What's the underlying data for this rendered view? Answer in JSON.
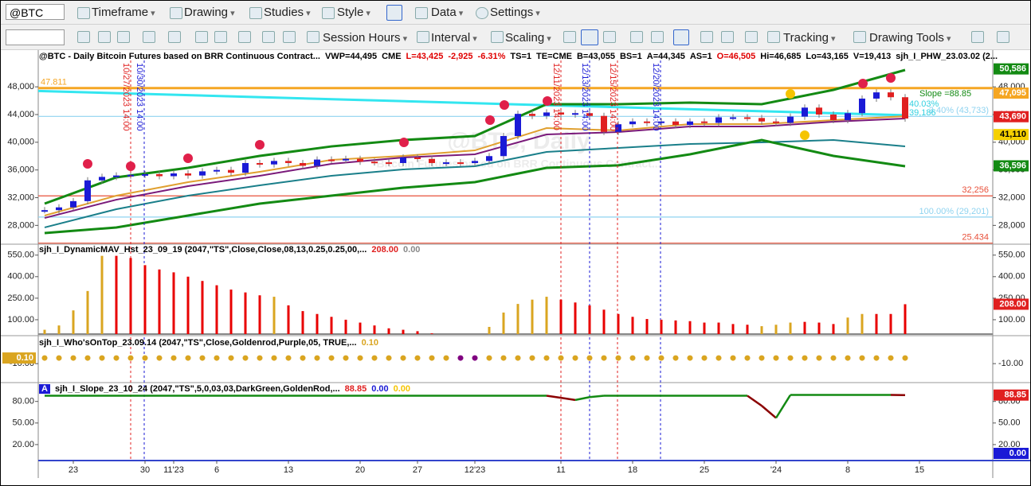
{
  "toolbar": {
    "symbol": "@BTC",
    "menus": [
      "Timeframe",
      "Drawing",
      "Studies",
      "Style",
      "Data",
      "Settings"
    ],
    "row2": [
      "Session Hours",
      "Interval",
      "Scaling",
      "Tracking",
      "Drawing Tools"
    ]
  },
  "price_panel": {
    "header": "@BTC - Daily  Bitcoin Futures based on BRR Continuous Contract...",
    "stats": [
      {
        "text": "VWP=44,495",
        "color": "#000000"
      },
      {
        "text": "CME",
        "color": "#000000"
      },
      {
        "text": "L=43,425",
        "color": "#e00000"
      },
      {
        "text": "-2,925",
        "color": "#e00000"
      },
      {
        "text": "-6.31%",
        "color": "#e00000"
      },
      {
        "text": "TS=1",
        "color": "#000000"
      },
      {
        "text": "TE=CME",
        "color": "#000000"
      },
      {
        "text": "B=43,055",
        "color": "#000000"
      },
      {
        "text": "BS=1",
        "color": "#000000"
      },
      {
        "text": "A=44,345",
        "color": "#000000"
      },
      {
        "text": "AS=1",
        "color": "#000000"
      },
      {
        "text": "O=46,505",
        "color": "#e00000"
      },
      {
        "text": "Hi=46,685",
        "color": "#000000"
      },
      {
        "text": "Lo=43,165",
        "color": "#000000"
      },
      {
        "text": "V=19,413",
        "color": "#000000"
      },
      {
        "text": "sjh_I_PHW_23.03.02 (2...",
        "color": "#000000"
      }
    ],
    "watermark": "@BTC, Daily",
    "watermark_sub": "Bitcoin Futures based on BRR Continuous Contract...",
    "ylim": [
      25400,
      53300
    ],
    "yticks": [
      {
        "value": 48000,
        "label": "48,000"
      },
      {
        "value": 44000,
        "label": "44,000"
      },
      {
        "value": 40000,
        "label": "40,000"
      },
      {
        "value": 36000,
        "label": "36,000"
      },
      {
        "value": 32000,
        "label": "32,000"
      },
      {
        "value": 28000,
        "label": "28,000"
      }
    ],
    "close": [
      30200,
      30600,
      31500,
      34500,
      35000,
      35200,
      35300,
      35400,
      35100,
      35500,
      35200,
      35800,
      36000,
      35600,
      37000,
      36800,
      37300,
      37000,
      36600,
      37500,
      37400,
      37600,
      37200,
      37100,
      37000,
      37800,
      37600,
      37000,
      37100,
      37000,
      37300,
      38000,
      40900,
      44100,
      43800,
      44300,
      44000,
      44200,
      43800,
      41500,
      42600,
      43000,
      42800,
      43000,
      42500,
      43000,
      42800,
      43600,
      43600,
      43500,
      43000,
      42800,
      43700,
      45000,
      44000,
      43200,
      44200,
      46300,
      47200,
      46500,
      43425
    ],
    "band_x": [
      0,
      5,
      10,
      15,
      20,
      25,
      30,
      35,
      40,
      45,
      50,
      55,
      60
    ],
    "bands": [
      {
        "color": "#138a13",
        "values": [
          31140,
          34930,
          36310,
          38030,
          39400,
          40320,
          40900,
          45490,
          45490,
          45720,
          45490,
          47560,
          50430
        ]
      },
      {
        "color": "#e0a030",
        "values": [
          29420,
          32290,
          34240,
          35730,
          37450,
          38030,
          38830,
          42050,
          41700,
          42620,
          42620,
          43190,
          43770
        ]
      },
      {
        "color": "#7a1a7a",
        "values": [
          29070,
          31710,
          33670,
          35160,
          36880,
          37800,
          38260,
          41130,
          41470,
          42280,
          42280,
          42960,
          43420
        ]
      },
      {
        "color": "#1a7f8a",
        "values": [
          27700,
          30340,
          32290,
          33780,
          35160,
          36080,
          36540,
          38600,
          39180,
          39750,
          39980,
          40320,
          39410
        ]
      },
      {
        "color": "#138a13",
        "values": [
          26890,
          27700,
          29420,
          31140,
          32290,
          33440,
          34240,
          36310,
          36670,
          38260,
          40320,
          38030,
          36540
        ]
      }
    ],
    "trendline": {
      "color": "#33e6f0",
      "values": [
        47400,
        43900
      ]
    },
    "levels": [
      {
        "value": 47811,
        "label": "47.811",
        "color": "#f5a623"
      },
      {
        "value": 43733,
        "label": "3.40% (43,733)",
        "color": "#8fd3f0"
      },
      {
        "value": 32256,
        "label": "32,256",
        "color": "#e8503a"
      },
      {
        "value": 29201,
        "label": "100.00% (29,201)",
        "color": "#8fd3f0"
      },
      {
        "value": 25434,
        "label": "25.434",
        "color": "#e8503a"
      }
    ],
    "annotations": [
      {
        "text": "Slope =88.85",
        "color": "#138a13"
      },
      {
        "text": "40.03%",
        "color": "#33d0e0"
      },
      {
        "text": "39,186",
        "color": "#33d0e0"
      }
    ],
    "boxes": [
      {
        "value": 50586,
        "label": "50,586",
        "color": "#138a13",
        "text_color": "#ffffff"
      },
      {
        "value": 47095,
        "label": "47,095",
        "color": "#f5a623",
        "text_color": "#ffffff"
      },
      {
        "value": 43690,
        "label": "43,690",
        "color": "#e02020",
        "text_color": "#ffffff"
      },
      {
        "value": 41110,
        "label": "41,110",
        "color": "#f5d000",
        "text_color": "#000000"
      },
      {
        "value": 36596,
        "label": "36,596",
        "color": "#138a13",
        "text_color": "#ffffff"
      }
    ],
    "date_markers": [
      {
        "text": "10/27/2023 14:00",
        "color": "#e02020"
      },
      {
        "text": "10/30/2023 14:00",
        "color": "#1a1ad6"
      },
      {
        "text": "12/11/2023 14:00",
        "color": "#e02020"
      },
      {
        "text": "12/13/2023 14:00",
        "color": "#1a1ad6"
      },
      {
        "text": "12/15/2023 14:00",
        "color": "#e02020"
      },
      {
        "text": "12/20/2023 14:00",
        "color": "#1a1ad6"
      }
    ]
  },
  "histogram_panel": {
    "title": "sjh_I_DynamicMAV_Hst_23_09_19 (2047,\"TS\",Close,Close,08,13,0.25,0.25,00,...",
    "title_values": [
      {
        "text": "208.00",
        "color": "#e02020"
      },
      {
        "text": "0.00",
        "color": "#888888"
      }
    ],
    "ylim": [
      0,
      615
    ],
    "yticks": [
      {
        "value": 550,
        "label": "550.00"
      },
      {
        "value": 400,
        "label": "400.00"
      },
      {
        "value": 250,
        "label": "250.00"
      },
      {
        "value": 100,
        "label": "100.00"
      }
    ],
    "series": [
      {
        "color": "#daa520",
        "values": [
          30,
          60,
          165,
          300,
          545,
          null,
          null,
          null,
          null,
          null,
          null,
          null,
          null,
          null,
          null,
          null,
          260,
          null,
          null,
          null,
          null,
          null,
          null,
          null,
          null,
          null,
          null,
          null,
          null,
          null,
          null,
          50,
          150,
          210,
          240,
          260,
          null,
          null,
          null,
          null,
          null,
          null,
          null,
          null,
          null,
          null,
          null,
          null,
          null,
          null,
          55,
          65,
          80,
          null,
          null,
          null,
          115,
          140,
          null,
          null,
          null
        ]
      },
      {
        "color": "#e80000",
        "values": [
          null,
          null,
          null,
          null,
          null,
          545,
          530,
          480,
          450,
          430,
          400,
          370,
          340,
          310,
          290,
          270,
          null,
          200,
          160,
          140,
          120,
          100,
          80,
          60,
          40,
          30,
          20,
          5,
          0,
          0,
          0,
          null,
          null,
          null,
          null,
          null,
          240,
          220,
          200,
          170,
          140,
          120,
          105,
          100,
          95,
          90,
          80,
          80,
          70,
          65,
          null,
          null,
          null,
          85,
          80,
          70,
          null,
          null,
          140,
          140,
          208
        ]
      }
    ],
    "box": {
      "value": 208,
      "label": "208.00",
      "color": "#e02020"
    }
  },
  "dots_panel": {
    "title": "sjh_I_Who'sOnTop_23.09.14 (2047,\"TS\",Close,Goldenrod,Purple,05,  TRUE,...",
    "title_value": "0.10",
    "ylim": [
      -44,
      38.7
    ],
    "yticks": [
      {
        "value": -10,
        "label": "-10.00"
      }
    ],
    "series": [
      {
        "color": "#daa520",
        "values": [
          0.1,
          0.1,
          0.1,
          0.1,
          0.1,
          0.1,
          0.1,
          0.1,
          0.1,
          0.1,
          0.1,
          0.1,
          0.1,
          0.1,
          0.1,
          0.1,
          0.1,
          0.1,
          0.1,
          0.1,
          0.1,
          0.1,
          0.1,
          0.1,
          0.1,
          0.1,
          0.1,
          0.1,
          0.1,
          null,
          null,
          0.1,
          0.1,
          0.1,
          0.1,
          0.1,
          0.1,
          0.1,
          0.1,
          0.1,
          0.1,
          0.1,
          0.1,
          0.1,
          0.1,
          0.1,
          0.1,
          0.1,
          0.1,
          0.1,
          0.1,
          0.1,
          0.1,
          0.1,
          0.1,
          0.1,
          0.1,
          0.1,
          0.1,
          0.1,
          0.1
        ]
      },
      {
        "color": "#800080",
        "values": [
          null,
          null,
          null,
          null,
          null,
          null,
          null,
          null,
          null,
          null,
          null,
          null,
          null,
          null,
          null,
          null,
          null,
          null,
          null,
          null,
          null,
          null,
          null,
          null,
          null,
          null,
          null,
          null,
          null,
          0.1,
          0.1,
          null,
          null,
          null,
          null,
          null,
          null,
          null,
          null,
          null,
          null,
          null,
          null,
          null,
          null,
          null,
          null,
          null,
          null,
          null,
          null,
          null,
          null,
          null,
          null,
          null,
          null,
          null,
          null,
          null,
          null
        ]
      }
    ],
    "box": {
      "value": 0.1,
      "label": "0.10",
      "color": "#daa520"
    }
  },
  "slope_panel": {
    "badge": "A",
    "title": "sjh_I_Slope_23_10_24 (2047,\"TS\",5,0,03,03,DarkGreen,GoldenRod,...",
    "title_values": [
      {
        "text": "88.85",
        "color": "#e02020"
      },
      {
        "text": "0.00",
        "color": "#1a1ad6"
      },
      {
        "text": "0.00",
        "color": "#f5c400"
      }
    ],
    "ylim": [
      0,
      104
    ],
    "yticks": [
      {
        "value": 80,
        "label": "80.00"
      },
      {
        "value": 50,
        "label": "50.00"
      },
      {
        "value": 20,
        "label": "20.00"
      }
    ],
    "values": [
      88,
      88,
      88,
      88,
      88,
      88,
      88,
      88,
      88,
      88,
      88,
      88,
      88,
      88,
      88,
      88,
      88,
      88,
      88,
      88,
      88,
      88,
      88,
      88,
      88,
      88,
      88,
      88,
      88,
      88,
      88,
      88,
      88,
      88,
      88,
      88,
      85,
      82,
      86,
      88,
      88,
      88,
      88,
      88,
      88,
      88,
      88,
      88,
      88,
      88,
      74,
      57,
      89,
      89,
      89,
      89,
      89,
      89,
      89,
      89,
      88.85
    ],
    "up_color": "#138a13",
    "down_color": "#8b0000",
    "boxes": [
      {
        "value": 88.85,
        "label": "88.85",
        "color": "#e02020"
      },
      {
        "value": 0,
        "label": "0.00",
        "color": "#1a1ad6"
      }
    ]
  },
  "x_axis": [
    null,
    null,
    "23",
    null,
    null,
    null,
    null,
    "30",
    null,
    "11'23",
    null,
    null,
    "6",
    null,
    null,
    null,
    null,
    "13",
    null,
    null,
    null,
    null,
    "20",
    null,
    null,
    null,
    "27",
    null,
    null,
    null,
    "12'23",
    null,
    null,
    null,
    null,
    null,
    "11",
    null,
    null,
    null,
    null,
    "18",
    null,
    null,
    null,
    null,
    "25",
    null,
    null,
    null,
    null,
    "'24",
    null,
    null,
    null,
    null,
    "8",
    null,
    null,
    null,
    null,
    "15"
  ]
}
